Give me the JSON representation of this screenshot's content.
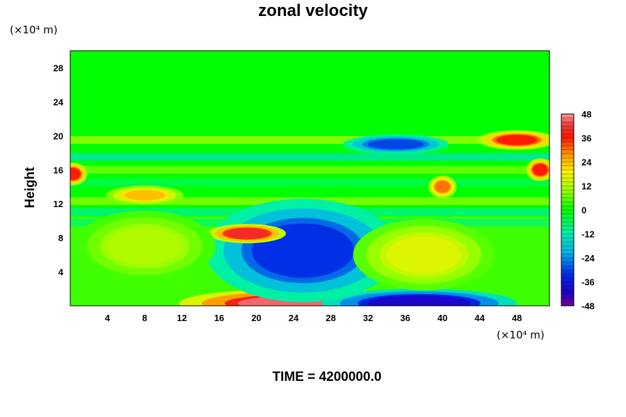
{
  "chart_data": {
    "type": "heatmap",
    "title": "zonal velocity",
    "ylabel": "Height",
    "x_unit": "(×10⁴ m)",
    "y_unit": "(×10⁴ m)",
    "xlim": [
      0,
      51.5
    ],
    "ylim": [
      0,
      30
    ],
    "x_ticks": [
      4,
      8,
      12,
      16,
      20,
      24,
      28,
      32,
      36,
      40,
      44,
      48
    ],
    "y_ticks": [
      4,
      8,
      12,
      16,
      20,
      24,
      28
    ],
    "colorbar": {
      "range": [
        -48,
        48
      ],
      "ticks": [
        48,
        36,
        24,
        12,
        0,
        -12,
        -24,
        -36,
        -48
      ]
    },
    "features": [
      {
        "x": 25,
        "y": 0.3,
        "value": 45,
        "kind": "positive-jet"
      },
      {
        "x": 37.5,
        "y": 0.3,
        "value": -40,
        "kind": "negative-jet"
      },
      {
        "x": 25,
        "y": 6.5,
        "value": -32,
        "kind": "negative-cell"
      },
      {
        "x": 19,
        "y": 8.5,
        "value": 40,
        "kind": "positive-streak"
      },
      {
        "x": 38,
        "y": 6,
        "value": 16,
        "kind": "positive-cell"
      },
      {
        "x": 8,
        "y": 7,
        "value": 12,
        "kind": "positive-cell"
      },
      {
        "x": 35,
        "y": 19,
        "value": -30,
        "kind": "negative-streak"
      },
      {
        "x": 48,
        "y": 19.5,
        "value": 36,
        "kind": "positive-streak"
      },
      {
        "x": 0.3,
        "y": 15.5,
        "value": 36,
        "kind": "positive-edge"
      },
      {
        "x": 50.5,
        "y": 16,
        "value": 36,
        "kind": "positive-edge"
      },
      {
        "x": 40,
        "y": 14,
        "value": 30,
        "kind": "positive-spots"
      },
      {
        "x": 8,
        "y": 13,
        "value": 24,
        "kind": "positive-streak"
      }
    ],
    "bands": [
      {
        "y": 19.5,
        "value": 12
      },
      {
        "y": 17.5,
        "value": -14
      },
      {
        "y": 16,
        "value": 8
      },
      {
        "y": 14.5,
        "value": -6
      },
      {
        "y": 12.3,
        "value": 10
      },
      {
        "y": 11,
        "value": -10
      },
      {
        "y": 9.8,
        "value": -8
      }
    ]
  },
  "footer": {
    "time_label": "TIME = 4200000.0"
  }
}
